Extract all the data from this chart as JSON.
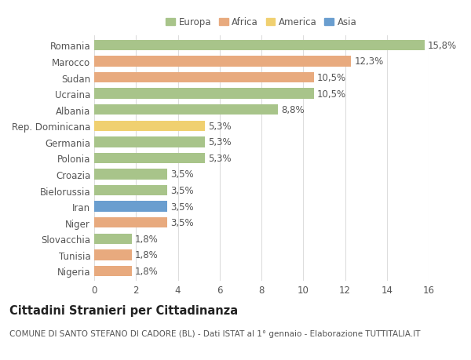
{
  "categories": [
    "Romania",
    "Marocco",
    "Sudan",
    "Ucraina",
    "Albania",
    "Rep. Dominicana",
    "Germania",
    "Polonia",
    "Croazia",
    "Bielorussia",
    "Iran",
    "Niger",
    "Slovacchia",
    "Tunisia",
    "Nigeria"
  ],
  "values": [
    15.8,
    12.3,
    10.5,
    10.5,
    8.8,
    5.3,
    5.3,
    5.3,
    3.5,
    3.5,
    3.5,
    3.5,
    1.8,
    1.8,
    1.8
  ],
  "labels": [
    "15,8%",
    "12,3%",
    "10,5%",
    "10,5%",
    "8,8%",
    "5,3%",
    "5,3%",
    "5,3%",
    "3,5%",
    "3,5%",
    "3,5%",
    "3,5%",
    "1,8%",
    "1,8%",
    "1,8%"
  ],
  "continents": [
    "Europa",
    "Africa",
    "Africa",
    "Europa",
    "Europa",
    "America",
    "Europa",
    "Europa",
    "Europa",
    "Europa",
    "Asia",
    "Africa",
    "Europa",
    "Africa",
    "Africa"
  ],
  "continent_colors": {
    "Europa": "#a8c48a",
    "Africa": "#e8aa7e",
    "America": "#f0d070",
    "Asia": "#6a9ecf"
  },
  "legend_order": [
    "Europa",
    "Africa",
    "America",
    "Asia"
  ],
  "title": "Cittadini Stranieri per Cittadinanza",
  "subtitle": "COMUNE DI SANTO STEFANO DI CADORE (BL) - Dati ISTAT al 1° gennaio - Elaborazione TUTTITALIA.IT",
  "xlim": [
    0,
    16
  ],
  "xticks": [
    0,
    2,
    4,
    6,
    8,
    10,
    12,
    14,
    16
  ],
  "background_color": "#ffffff",
  "bar_height": 0.65,
  "grid_color": "#dddddd",
  "label_fontsize": 8.5,
  "title_fontsize": 10.5,
  "subtitle_fontsize": 7.5
}
